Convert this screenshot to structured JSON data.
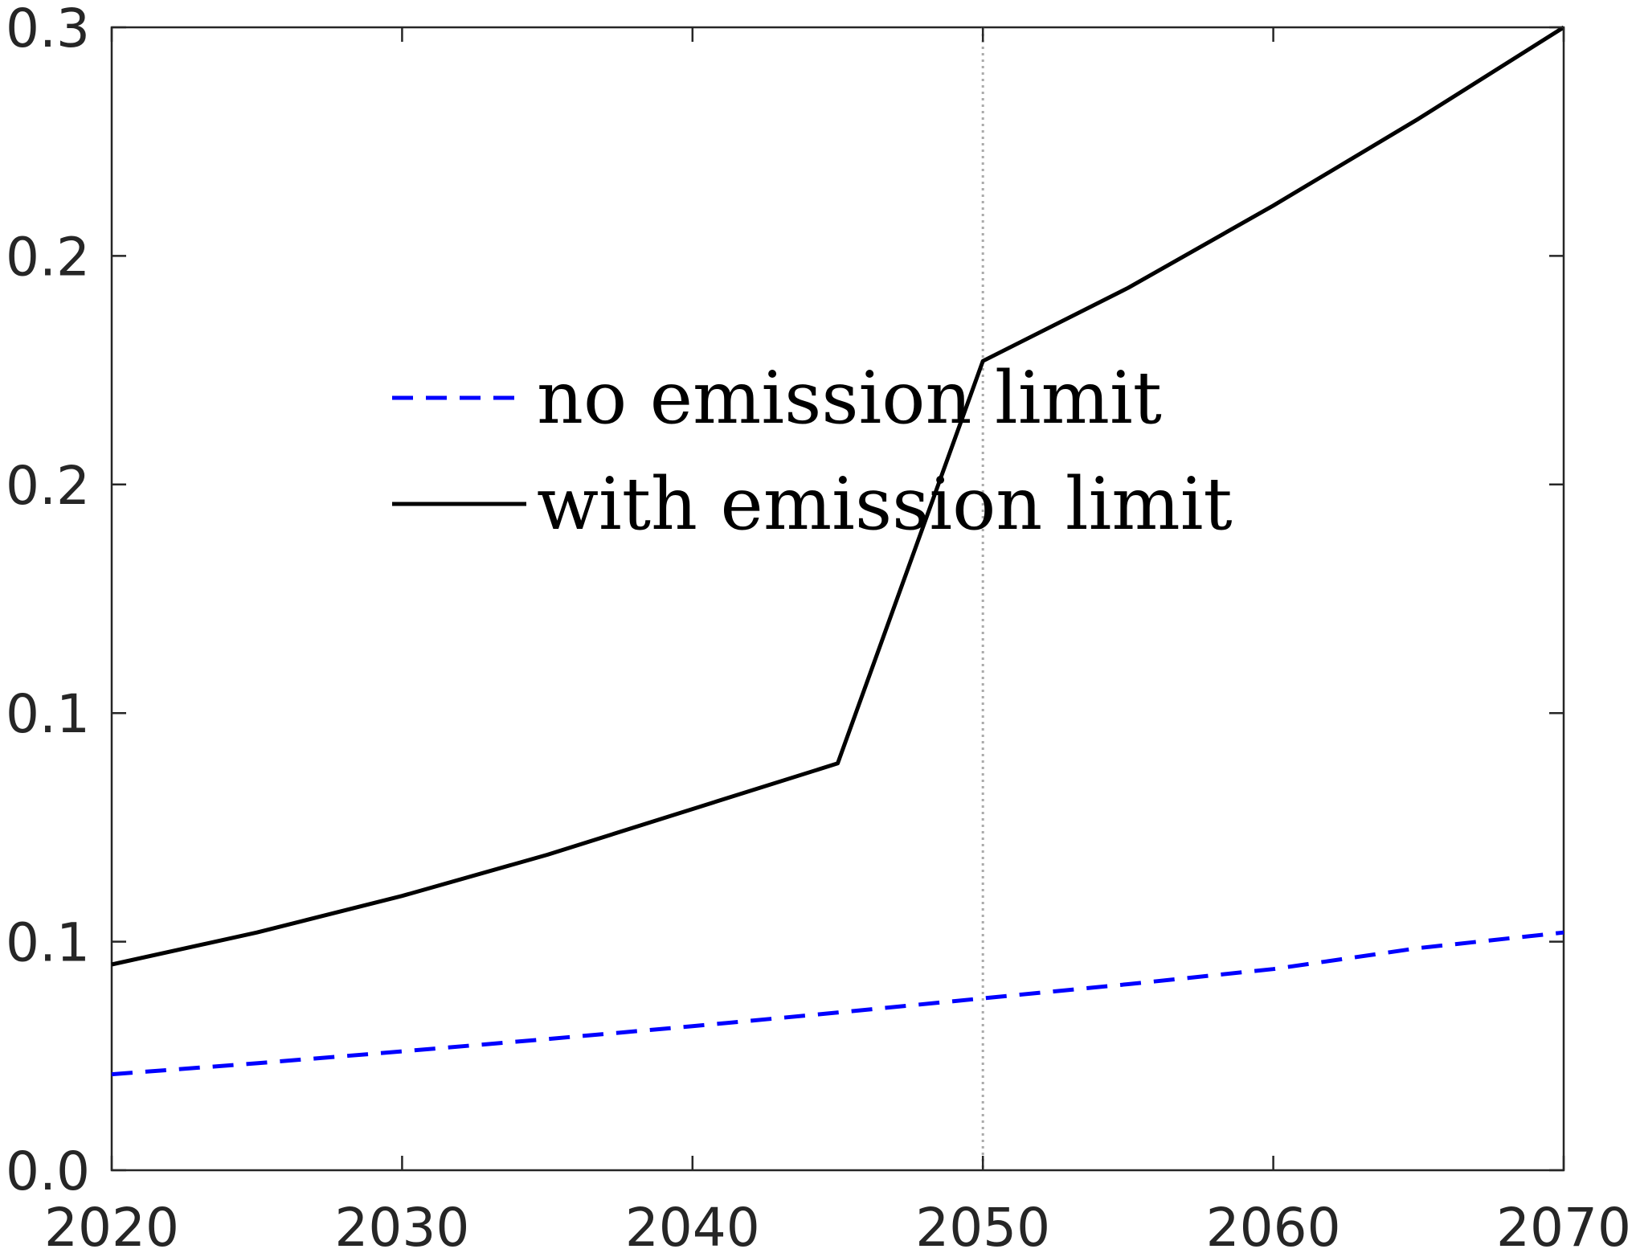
{
  "chart_data": {
    "type": "line",
    "title": "",
    "xlabel": "",
    "ylabel": "",
    "xlim": [
      2020,
      2070
    ],
    "ylim": [
      0,
      0.25
    ],
    "x_ticks": [
      2020,
      2030,
      2040,
      2050,
      2060,
      2070
    ],
    "x_tick_labels": [
      "2020",
      "2030",
      "2040",
      "2050",
      "2060",
      "2070"
    ],
    "y_ticks": [
      0,
      0.05,
      0.1,
      0.15,
      0.2,
      0.25
    ],
    "y_tick_labels": [
      "0.0",
      "0.1",
      "0.1",
      "0.2",
      "0.2",
      "0.3"
    ],
    "reference_line": {
      "x": 2050,
      "style": "dotted",
      "color": "#aaaaaa"
    },
    "grid": false,
    "legend_position": "center-left",
    "series": [
      {
        "name": "no emission limit",
        "style": "dashed",
        "color": "#0000ff",
        "x": [
          2020,
          2025,
          2030,
          2035,
          2040,
          2045,
          2050,
          2055,
          2060,
          2065,
          2070
        ],
        "values": [
          0.021,
          0.0234,
          0.026,
          0.0287,
          0.0315,
          0.0345,
          0.0376,
          0.0407,
          0.044,
          0.0486,
          0.052
        ]
      },
      {
        "name": "with emission limit",
        "style": "solid",
        "color": "#000000",
        "x": [
          2020,
          2025,
          2030,
          2035,
          2040,
          2045,
          2050,
          2055,
          2060,
          2065,
          2070
        ],
        "values": [
          0.045,
          0.052,
          0.06,
          0.069,
          0.079,
          0.089,
          0.177,
          0.193,
          0.211,
          0.23,
          0.25
        ]
      }
    ]
  }
}
